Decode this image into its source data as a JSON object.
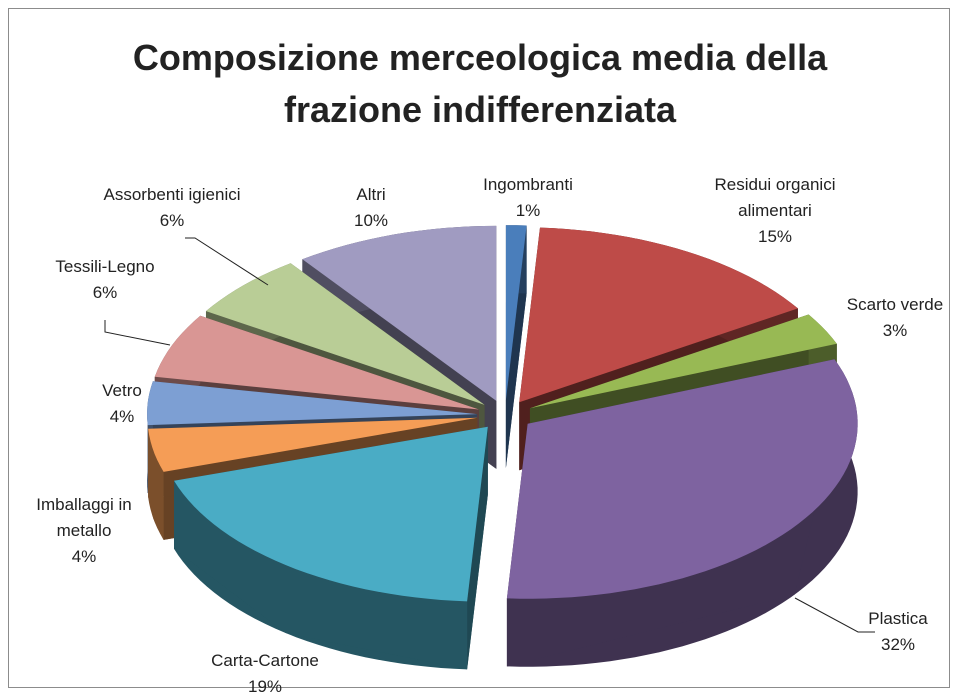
{
  "chart_data": {
    "type": "pie3d",
    "title": "Composizione merceologica media della frazione indifferenziata",
    "categories": [
      "Ingombranti",
      "Residui organici alimentari",
      "Scarto verde",
      "Plastica",
      "Carta-Cartone",
      "Imballaggi in metallo",
      "Vetro",
      "Tessili-Legno",
      "Assorbenti igienici",
      "Altri"
    ],
    "values": [
      1,
      15,
      3,
      32,
      19,
      4,
      4,
      6,
      6,
      10
    ],
    "value_labels": [
      "1%",
      "15%",
      "3%",
      "32%",
      "19%",
      "4%",
      "4%",
      "6%",
      "6%",
      "10%"
    ],
    "colors": [
      "#4a7ebb",
      "#be4b48",
      "#98b954",
      "#7e63a0",
      "#4aacc5",
      "#f59d56",
      "#7d9fd3",
      "#d99694",
      "#b9cd96",
      "#a09bc1"
    ]
  }
}
